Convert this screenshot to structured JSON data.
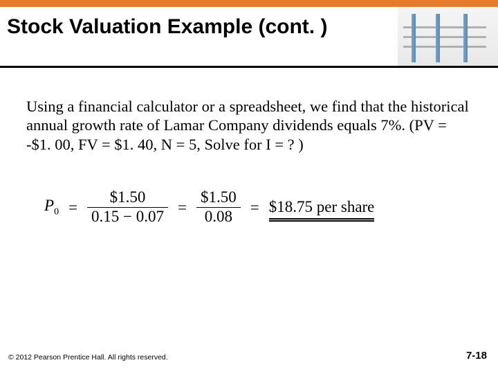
{
  "colors": {
    "accent_bar": "#e57b2b",
    "underline": "#000000",
    "background": "#ffffff",
    "text": "#000000"
  },
  "header": {
    "title": "Stock Valuation Example (cont. )"
  },
  "body": {
    "paragraph": "Using a financial calculator or a spreadsheet, we find that the historical annual growth rate of Lamar Company dividends equals 7%. (PV = -$1. 00, FV = $1. 40, N = 5, Solve for I = ? )"
  },
  "equation": {
    "lhs_symbol": "P",
    "lhs_subscript": "0",
    "frac1_num": "$1.50",
    "frac1_den": "0.15 − 0.07",
    "frac2_num": "$1.50",
    "frac2_den": "0.08",
    "result": "$18.75 per share"
  },
  "footer": {
    "copyright": "© 2012 Pearson Prentice Hall. All rights reserved.",
    "page": "7-18"
  }
}
